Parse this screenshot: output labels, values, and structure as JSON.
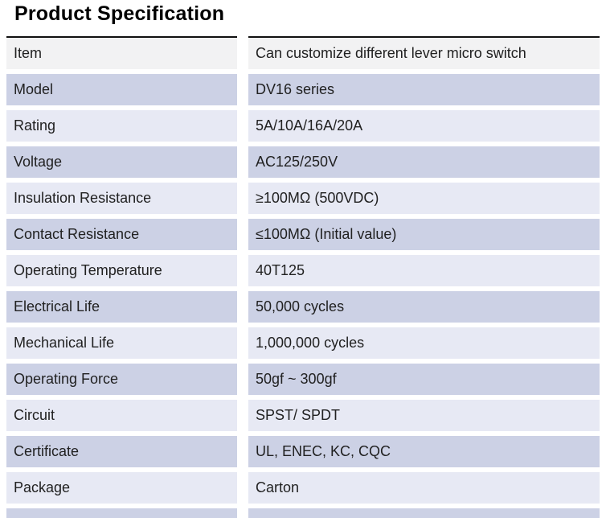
{
  "page": {
    "title": "Product Specification",
    "background": "#ffffff"
  },
  "colors": {
    "row_header_bg": "#f2f2f3",
    "row_dark_bg": "#ccd1e5",
    "row_light_bg": "#e7e9f4",
    "table_top_border": "#111111",
    "text": "#212121",
    "title_text": "#000000"
  },
  "spec_table": {
    "rows": [
      {
        "label": "Item",
        "value": "Can customize different lever micro switch",
        "variant": "header"
      },
      {
        "label": "Model",
        "value": "DV16 series",
        "variant": "dark"
      },
      {
        "label": "Rating",
        "value": "5A/10A/16A/20A",
        "variant": "light"
      },
      {
        "label": "Voltage",
        "value": "AC125/250V",
        "variant": "dark"
      },
      {
        "label": "Insulation Resistance",
        "value": "≥100MΩ (500VDC)",
        "variant": "light"
      },
      {
        "label": "Contact Resistance",
        "value": "≤100MΩ (Initial value)",
        "variant": "dark"
      },
      {
        "label": "Operating Temperature",
        "value": "40T125",
        "variant": "light"
      },
      {
        "label": "Electrical Life",
        "value": "50,000 cycles",
        "variant": "dark"
      },
      {
        "label": "Mechanical Life",
        "value": "1,000,000 cycles",
        "variant": "light"
      },
      {
        "label": "Operating Force",
        "value": "50gf ~ 300gf",
        "variant": "dark"
      },
      {
        "label": "Circuit",
        "value": "SPST/ SPDT",
        "variant": "light"
      },
      {
        "label": "Certificate",
        "value": "UL, ENEC, KC, CQC",
        "variant": "dark"
      },
      {
        "label": "Package",
        "value": "Carton",
        "variant": "light"
      },
      {
        "label": "",
        "value": "",
        "variant": "dark",
        "cutoff": true
      }
    ]
  }
}
